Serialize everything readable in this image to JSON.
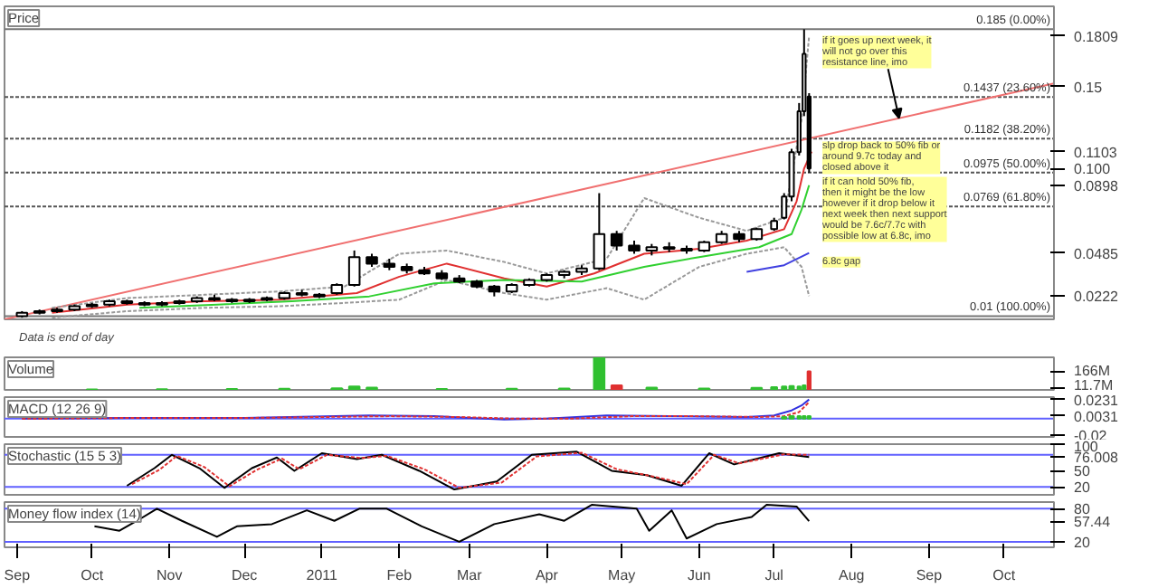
{
  "chart_data": [
    {
      "type": "candlestick",
      "title": "Price",
      "xlim": [
        "2010-08-27",
        "2011-10-21"
      ],
      "ylim": [
        0.008,
        0.199
      ],
      "tick_labels": "y",
      "grid": false,
      "yticks": [
        {
          "value": 0.1809,
          "label": "0.1809"
        },
        {
          "value": 0.15,
          "label": "0.15"
        },
        {
          "value": 0.1103,
          "label": "0.1103"
        },
        {
          "value": 0.1,
          "label": "0.100"
        },
        {
          "value": 0.0898,
          "label": "0.0898"
        },
        {
          "value": 0.0485,
          "label": "0.0485"
        },
        {
          "value": 0.0222,
          "label": "0.0222"
        }
      ],
      "x": [
        "2010-09-03",
        "2010-09-10",
        "2010-09-17",
        "2010-09-24",
        "2010-10-01",
        "2010-10-08",
        "2010-10-15",
        "2010-10-22",
        "2010-10-29",
        "2010-11-05",
        "2010-11-12",
        "2010-11-19",
        "2010-11-26",
        "2010-12-03",
        "2010-12-10",
        "2010-12-17",
        "2010-12-24",
        "2010-12-31",
        "2011-01-07",
        "2011-01-14",
        "2011-01-21",
        "2011-01-28",
        "2011-02-04",
        "2011-02-11",
        "2011-02-18",
        "2011-02-25",
        "2011-03-04",
        "2011-03-11",
        "2011-03-18",
        "2011-03-25",
        "2011-04-01",
        "2011-04-08",
        "2011-04-15",
        "2011-04-22",
        "2011-04-29",
        "2011-05-06",
        "2011-05-13",
        "2011-05-20",
        "2011-05-27",
        "2011-06-03",
        "2011-06-10",
        "2011-06-17",
        "2011-06-24",
        "2011-07-01",
        "2011-07-05",
        "2011-07-08",
        "2011-07-11",
        "2011-07-13",
        "2011-07-15"
      ],
      "ohlc": [
        [
          0.01,
          0.013,
          0.009,
          0.012
        ],
        [
          0.012,
          0.014,
          0.011,
          0.013
        ],
        [
          0.013,
          0.015,
          0.012,
          0.014
        ],
        [
          0.014,
          0.017,
          0.013,
          0.016
        ],
        [
          0.016,
          0.018,
          0.015,
          0.017
        ],
        [
          0.017,
          0.02,
          0.016,
          0.019
        ],
        [
          0.019,
          0.02,
          0.017,
          0.018
        ],
        [
          0.018,
          0.019,
          0.016,
          0.017
        ],
        [
          0.017,
          0.019,
          0.016,
          0.018
        ],
        [
          0.018,
          0.02,
          0.017,
          0.019
        ],
        [
          0.019,
          0.022,
          0.018,
          0.021
        ],
        [
          0.021,
          0.023,
          0.019,
          0.02
        ],
        [
          0.02,
          0.021,
          0.018,
          0.019
        ],
        [
          0.019,
          0.021,
          0.018,
          0.02
        ],
        [
          0.02,
          0.022,
          0.019,
          0.021
        ],
        [
          0.021,
          0.025,
          0.02,
          0.024
        ],
        [
          0.024,
          0.026,
          0.022,
          0.023
        ],
        [
          0.023,
          0.024,
          0.021,
          0.022
        ],
        [
          0.024,
          0.03,
          0.023,
          0.029
        ],
        [
          0.029,
          0.05,
          0.028,
          0.046
        ],
        [
          0.046,
          0.048,
          0.04,
          0.042
        ],
        [
          0.042,
          0.045,
          0.038,
          0.04
        ],
        [
          0.04,
          0.042,
          0.036,
          0.038
        ],
        [
          0.038,
          0.04,
          0.035,
          0.036
        ],
        [
          0.036,
          0.038,
          0.032,
          0.033
        ],
        [
          0.033,
          0.035,
          0.03,
          0.031
        ],
        [
          0.031,
          0.032,
          0.027,
          0.028
        ],
        [
          0.028,
          0.029,
          0.022,
          0.025
        ],
        [
          0.025,
          0.03,
          0.024,
          0.029
        ],
        [
          0.029,
          0.033,
          0.028,
          0.032
        ],
        [
          0.032,
          0.036,
          0.031,
          0.035
        ],
        [
          0.035,
          0.038,
          0.033,
          0.037
        ],
        [
          0.037,
          0.041,
          0.035,
          0.039
        ],
        [
          0.039,
          0.085,
          0.038,
          0.06
        ],
        [
          0.06,
          0.062,
          0.05,
          0.053
        ],
        [
          0.053,
          0.056,
          0.048,
          0.05
        ],
        [
          0.05,
          0.054,
          0.047,
          0.052
        ],
        [
          0.052,
          0.055,
          0.049,
          0.051
        ],
        [
          0.051,
          0.053,
          0.048,
          0.05
        ],
        [
          0.05,
          0.056,
          0.049,
          0.055
        ],
        [
          0.055,
          0.062,
          0.054,
          0.06
        ],
        [
          0.06,
          0.062,
          0.055,
          0.057
        ],
        [
          0.057,
          0.064,
          0.056,
          0.063
        ],
        [
          0.063,
          0.07,
          0.062,
          0.068
        ],
        [
          0.07,
          0.085,
          0.069,
          0.083
        ],
        [
          0.083,
          0.112,
          0.08,
          0.11
        ],
        [
          0.11,
          0.14,
          0.108,
          0.135
        ],
        [
          0.135,
          0.185,
          0.132,
          0.17
        ],
        [
          0.144,
          0.146,
          0.0975,
          0.1
        ]
      ],
      "series": [
        {
          "type": "line",
          "color": "#f07070",
          "x": [
            "2010-08-27",
            "2011-10-21"
          ],
          "values": [
            0.008,
            0.152
          ]
        },
        {
          "type": "line",
          "color": "#999999",
          "line_style": "dotted",
          "x": [
            "2010-09-15",
            "2010-10-15",
            "2010-11-15",
            "2010-12-15",
            "2011-01-10",
            "2011-02-01",
            "2011-02-20",
            "2011-03-15",
            "2011-04-01",
            "2011-04-25",
            "2011-05-10",
            "2011-06-01",
            "2011-06-20",
            "2011-07-05",
            "2011-07-12",
            "2011-07-15"
          ],
          "values": [
            0.015,
            0.021,
            0.023,
            0.025,
            0.028,
            0.048,
            0.05,
            0.043,
            0.036,
            0.045,
            0.082,
            0.07,
            0.062,
            0.07,
            0.13,
            0.1809
          ]
        },
        {
          "type": "line",
          "color": "#999999",
          "line_style": "dotted",
          "x": [
            "2010-09-15",
            "2010-10-15",
            "2010-11-15",
            "2010-12-15",
            "2011-01-10",
            "2011-02-01",
            "2011-02-20",
            "2011-03-15",
            "2011-04-01",
            "2011-04-25",
            "2011-05-10",
            "2011-06-01",
            "2011-06-20",
            "2011-07-05",
            "2011-07-12",
            "2011-07-15"
          ],
          "values": [
            0.009,
            0.013,
            0.015,
            0.016,
            0.018,
            0.02,
            0.032,
            0.024,
            0.02,
            0.027,
            0.02,
            0.04,
            0.048,
            0.052,
            0.04,
            0.0222
          ]
        },
        {
          "type": "line",
          "color": "#e03030",
          "x": [
            "2010-09-15",
            "2010-10-15",
            "2010-11-15",
            "2010-12-15",
            "2011-01-15",
            "2011-02-01",
            "2011-02-20",
            "2011-03-15",
            "2011-04-01",
            "2011-04-20",
            "2011-05-10",
            "2011-06-01",
            "2011-06-20",
            "2011-07-05",
            "2011-07-10",
            "2011-07-13",
            "2011-07-16"
          ],
          "values": [
            0.012,
            0.017,
            0.019,
            0.02,
            0.024,
            0.034,
            0.042,
            0.033,
            0.028,
            0.036,
            0.048,
            0.051,
            0.056,
            0.063,
            0.08,
            0.1,
            0.1103
          ]
        },
        {
          "type": "line",
          "color": "#30d030",
          "x": [
            "2010-10-20",
            "2010-11-20",
            "2010-12-20",
            "2011-01-20",
            "2011-02-15",
            "2011-03-15",
            "2011-04-15",
            "2011-05-10",
            "2011-06-01",
            "2011-06-25",
            "2011-07-08",
            "2011-07-12",
            "2011-07-15"
          ],
          "values": [
            0.015,
            0.017,
            0.019,
            0.022,
            0.03,
            0.032,
            0.031,
            0.04,
            0.046,
            0.052,
            0.06,
            0.075,
            0.0898
          ]
        },
        {
          "type": "line",
          "color": "#4040e0",
          "x": [
            "2011-06-20",
            "2011-07-05",
            "2011-07-15"
          ],
          "values": [
            0.037,
            0.041,
            0.0485
          ]
        }
      ],
      "ref_lines": [
        {
          "axis": "y",
          "value": 0.185,
          "label": "0.185 (0.00%)",
          "line_style": "solid",
          "color": "#777777"
        },
        {
          "axis": "y",
          "value": 0.1437,
          "label": "0.1437 (23.60%)",
          "line_style": "dotted",
          "color": "#555555"
        },
        {
          "axis": "y",
          "value": 0.1182,
          "label": "0.1182 (38.20%)",
          "line_style": "dotted",
          "color": "#555555"
        },
        {
          "axis": "y",
          "value": 0.0975,
          "label": "0.0975 (50.00%)",
          "line_style": "dotted",
          "color": "#555555"
        },
        {
          "axis": "y",
          "value": 0.0769,
          "label": "0.0769 (61.80%)",
          "line_style": "dotted",
          "color": "#555555"
        },
        {
          "axis": "y",
          "value": 0.01,
          "label": "0.01 (100.00%)",
          "line_style": "solid",
          "color": "#777777"
        }
      ],
      "annotations": [
        {
          "text": "if it goes up next week, it will not go over this resistance line, imo",
          "x": "2011-08-20",
          "y": 0.1308
        },
        "slp drop back to 50% fib or around 9.7c today and closed above it",
        "if it can hold 50% fib, then it might be the low however if it drop below it next week then next support would be 7.6c/7.7c with possible low at 6.8c, imo",
        "6.8c gap",
        "Data is end of day"
      ]
    },
    {
      "type": "bar",
      "title": "Volume",
      "xlim": [
        "2010-08-27",
        "2011-10-21"
      ],
      "ylim": [
        0,
        290
      ],
      "tick_labels": "y",
      "yticks": [
        {
          "value": 166,
          "label": "166M"
        },
        {
          "value": 11.7,
          "label": "11.7M"
        }
      ],
      "x": [
        "2010-10-01",
        "2010-10-29",
        "2010-11-26",
        "2010-12-17",
        "2011-01-07",
        "2011-01-14",
        "2011-01-21",
        "2011-02-18",
        "2011-03-18",
        "2011-04-08",
        "2011-04-22",
        "2011-04-29",
        "2011-05-13",
        "2011-06-03",
        "2011-06-24",
        "2011-07-01",
        "2011-07-05",
        "2011-07-08",
        "2011-07-11",
        "2011-07-13",
        "2011-07-15"
      ],
      "values": [
        5,
        6,
        8,
        10,
        15,
        30,
        20,
        8,
        10,
        12,
        290,
        40,
        20,
        12,
        18,
        25,
        30,
        35,
        30,
        40,
        166
      ],
      "colors": [
        "#30c030",
        "#30c030",
        "#30c030",
        "#30c030",
        "#30c030",
        "#30c030",
        "#30c030",
        "#30c030",
        "#30c030",
        "#30c030",
        "#30c030",
        "#e03030",
        "#30c030",
        "#30c030",
        "#30c030",
        "#30c030",
        "#30c030",
        "#30c030",
        "#30c030",
        "#30c030",
        "#e03030"
      ]
    },
    {
      "type": "line",
      "title": "MACD (12 26 9)",
      "xlim": [
        "2010-08-27",
        "2011-10-21"
      ],
      "ylim": [
        -0.022,
        0.026
      ],
      "tick_labels": "y",
      "yticks": [
        {
          "value": 0.0231,
          "label": "0.0231"
        },
        {
          "value": 0.0031,
          "label": "0.0031"
        },
        {
          "value": -0.02,
          "label": "-0.02"
        }
      ],
      "ref_lines": [
        {
          "axis": "y",
          "value": 0,
          "color": "#6060ff",
          "line_style": "solid"
        }
      ],
      "series": [
        {
          "color": "#3030e0",
          "x": [
            "2010-09-03",
            "2010-10-15",
            "2010-12-01",
            "2011-01-20",
            "2011-02-15",
            "2011-03-15",
            "2011-04-01",
            "2011-04-25",
            "2011-05-20",
            "2011-06-20",
            "2011-07-01",
            "2011-07-08",
            "2011-07-12",
            "2011-07-15"
          ],
          "values": [
            0.0,
            0.001,
            0.001,
            0.004,
            0.003,
            -0.001,
            0.0,
            0.004,
            0.003,
            0.002,
            0.004,
            0.01,
            0.016,
            0.0231
          ]
        },
        {
          "color": "#e03030",
          "line_style": "dotted",
          "x": [
            "2010-09-03",
            "2010-10-20",
            "2010-12-05",
            "2011-01-28",
            "2011-02-25",
            "2011-03-20",
            "2011-04-10",
            "2011-05-05",
            "2011-05-30",
            "2011-06-25",
            "2011-07-05",
            "2011-07-11",
            "2011-07-15"
          ],
          "values": [
            0.0,
            0.001,
            0.001,
            0.003,
            0.002,
            0.0,
            0.0,
            0.003,
            0.003,
            0.002,
            0.003,
            0.008,
            0.02
          ]
        },
        {
          "type": "bar",
          "color": "#30c030",
          "x": [
            "2011-07-05",
            "2011-07-08",
            "2011-07-11",
            "2011-07-13",
            "2011-07-15"
          ],
          "values": [
            0.002,
            0.003,
            0.003,
            0.003,
            0.0031
          ]
        }
      ]
    },
    {
      "type": "line",
      "title": "Stochastic (15 5 3)",
      "xlim": [
        "2010-08-27",
        "2011-10-21"
      ],
      "ylim": [
        5,
        100
      ],
      "tick_labels": "y",
      "yticks": [
        {
          "value": 100,
          "label": "100"
        },
        {
          "value": 76.008,
          "label": "76.008"
        },
        {
          "value": 50,
          "label": "50"
        },
        {
          "value": 20,
          "label": "20"
        }
      ],
      "ref_lines": [
        {
          "axis": "y",
          "value": 80,
          "color": "#6060ff",
          "line_style": "solid"
        },
        {
          "axis": "y",
          "value": 20,
          "color": "#6060ff",
          "line_style": "solid"
        }
      ],
      "series": [
        {
          "color": "#000000",
          "x": [
            "2010-10-15",
            "2010-10-26",
            "2010-11-02",
            "2010-11-13",
            "2010-11-23",
            "2010-12-04",
            "2010-12-14",
            "2010-12-21",
            "2011-01-01",
            "2011-01-15",
            "2011-01-25",
            "2011-02-09",
            "2011-02-23",
            "2011-03-12",
            "2011-03-26",
            "2011-04-13",
            "2011-04-27",
            "2011-05-11",
            "2011-05-25",
            "2011-06-05",
            "2011-06-15",
            "2011-07-03",
            "2011-07-15"
          ],
          "values": [
            22,
            55,
            80,
            55,
            18,
            55,
            75,
            50,
            83,
            72,
            80,
            50,
            15,
            30,
            80,
            86,
            50,
            42,
            22,
            83,
            62,
            83,
            76.008
          ]
        },
        {
          "color": "#e03030",
          "line_style": "dotted",
          "x": [
            "2010-10-17",
            "2010-10-28",
            "2010-11-04",
            "2010-11-15",
            "2010-11-25",
            "2010-12-06",
            "2010-12-16",
            "2010-12-23",
            "2011-01-03",
            "2011-01-17",
            "2011-01-27",
            "2011-02-11",
            "2011-02-25",
            "2011-03-14",
            "2011-03-28",
            "2011-04-15",
            "2011-04-29",
            "2011-05-13",
            "2011-05-27",
            "2011-06-07",
            "2011-06-17",
            "2011-07-05",
            "2011-07-15"
          ],
          "values": [
            25,
            52,
            78,
            57,
            21,
            52,
            73,
            53,
            80,
            74,
            78,
            53,
            18,
            28,
            77,
            84,
            53,
            40,
            25,
            80,
            64,
            81,
            80
          ]
        }
      ]
    },
    {
      "type": "line",
      "title": "Money flow index (14)",
      "xlim": [
        "2010-08-27",
        "2011-10-21"
      ],
      "ylim": [
        10,
        92
      ],
      "xticks": [
        {
          "value": "2010-09-01",
          "label": "Sep"
        },
        {
          "value": "2010-10-01",
          "label": "Oct"
        },
        {
          "value": "2010-11-01",
          "label": "Nov"
        },
        {
          "value": "2010-12-01",
          "label": "Dec"
        },
        {
          "value": "2011-01-01",
          "label": "2011"
        },
        {
          "value": "2011-02-01",
          "label": "Feb"
        },
        {
          "value": "2011-03-01",
          "label": "Mar"
        },
        {
          "value": "2011-04-01",
          "label": "Apr"
        },
        {
          "value": "2011-05-01",
          "label": "May"
        },
        {
          "value": "2011-06-01",
          "label": "Jun"
        },
        {
          "value": "2011-07-01",
          "label": "Jul"
        },
        {
          "value": "2011-08-01",
          "label": "Aug"
        },
        {
          "value": "2011-09-01",
          "label": "Sep"
        },
        {
          "value": "2011-10-01",
          "label": "Oct"
        }
      ],
      "yticks": [
        80,
        {
          "value": 57.44,
          "label": "57.44"
        },
        20
      ],
      "ref_lines": [
        {
          "axis": "y",
          "value": 80,
          "color": "#6060ff",
          "line_style": "solid"
        },
        {
          "axis": "y",
          "value": 20,
          "color": "#6060ff",
          "line_style": "solid"
        }
      ],
      "series": [
        {
          "color": "#000000",
          "x": [
            "2010-10-02",
            "2010-10-12",
            "2010-10-19",
            "2010-10-27",
            "2010-11-06",
            "2010-11-20",
            "2010-11-28",
            "2010-12-12",
            "2010-12-26",
            "2011-01-06",
            "2011-01-16",
            "2011-01-27",
            "2011-02-10",
            "2011-02-25",
            "2011-03-11",
            "2011-03-29",
            "2011-04-08",
            "2011-04-19",
            "2011-05-07",
            "2011-05-12",
            "2011-05-21",
            "2011-05-27",
            "2011-06-08",
            "2011-06-22",
            "2011-06-28",
            "2011-07-10",
            "2011-07-15"
          ],
          "values": [
            48,
            40,
            58,
            80,
            58,
            29,
            48,
            52,
            77,
            58,
            80,
            80,
            48,
            20,
            52,
            70,
            58,
            87,
            80,
            40,
            77,
            26,
            52,
            65,
            87,
            84,
            57.44
          ]
        }
      ]
    }
  ]
}
